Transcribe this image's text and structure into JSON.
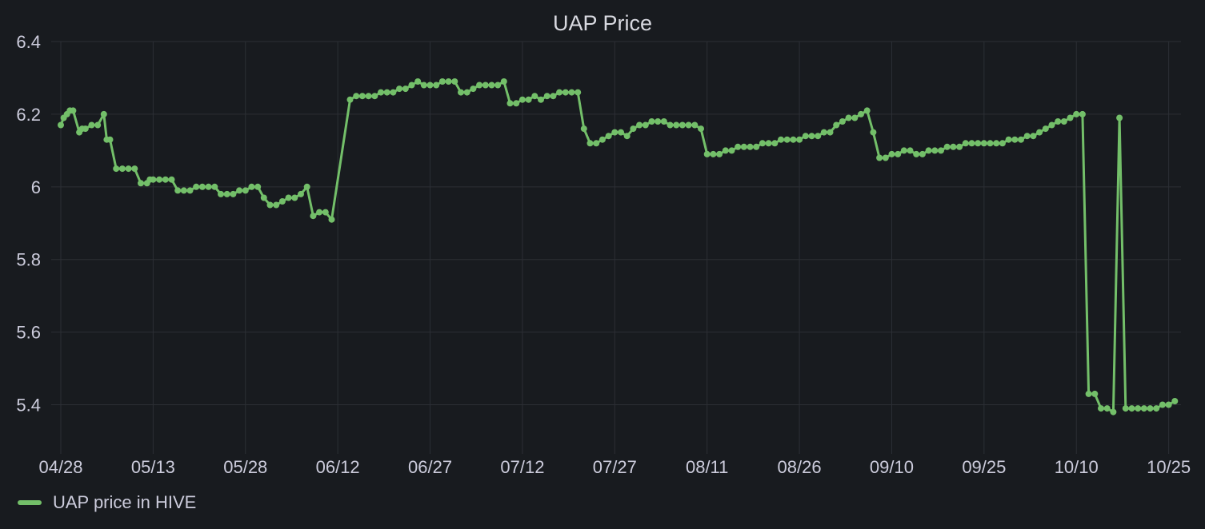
{
  "panel": {
    "title": "UAP Price"
  },
  "legend": {
    "label": "UAP price in HIVE"
  },
  "colors": {
    "background": "#181b1f",
    "grid": "#2c2f35",
    "series": "#73bf69",
    "text": "#ccccdc"
  },
  "chart_data": {
    "type": "line",
    "title": "UAP Price",
    "xlabel": "",
    "ylabel": "",
    "ylim": [
      5.3,
      6.4
    ],
    "xlim": [
      "2024-04-28",
      "2024-10-27"
    ],
    "y_ticks": [
      {
        "value": 5.4,
        "label": "5.4"
      },
      {
        "value": 5.6,
        "label": "5.6"
      },
      {
        "value": 5.8,
        "label": "5.8"
      },
      {
        "value": 6.0,
        "label": "6"
      },
      {
        "value": 6.2,
        "label": "6.2"
      },
      {
        "value": 6.4,
        "label": "6.4"
      }
    ],
    "x_ticks": [
      {
        "value": "2024-04-28",
        "label": "04/28"
      },
      {
        "value": "2024-05-13",
        "label": "05/13"
      },
      {
        "value": "2024-05-28",
        "label": "05/28"
      },
      {
        "value": "2024-06-12",
        "label": "06/12"
      },
      {
        "value": "2024-06-27",
        "label": "06/27"
      },
      {
        "value": "2024-07-12",
        "label": "07/12"
      },
      {
        "value": "2024-07-27",
        "label": "07/27"
      },
      {
        "value": "2024-08-11",
        "label": "08/11"
      },
      {
        "value": "2024-08-26",
        "label": "08/26"
      },
      {
        "value": "2024-09-10",
        "label": "09/10"
      },
      {
        "value": "2024-09-25",
        "label": "09/25"
      },
      {
        "value": "2024-10-10",
        "label": "10/10"
      },
      {
        "value": "2024-10-25",
        "label": "10/25"
      }
    ],
    "grid": true,
    "legend_position": "bottom-left",
    "series": [
      {
        "name": "UAP price in HIVE",
        "color": "#73bf69",
        "points": [
          [
            "2024-04-28",
            6.17
          ],
          [
            "2024-04-28",
            6.19
          ],
          [
            "2024-04-29",
            6.2
          ],
          [
            "2024-04-29",
            6.21
          ],
          [
            "2024-04-30",
            6.21
          ],
          [
            "2024-05-01",
            6.15
          ],
          [
            "2024-05-01",
            6.16
          ],
          [
            "2024-05-02",
            6.16
          ],
          [
            "2024-05-03",
            6.17
          ],
          [
            "2024-05-04",
            6.17
          ],
          [
            "2024-05-05",
            6.2
          ],
          [
            "2024-05-05",
            6.13
          ],
          [
            "2024-05-06",
            6.13
          ],
          [
            "2024-05-07",
            6.05
          ],
          [
            "2024-05-08",
            6.05
          ],
          [
            "2024-05-09",
            6.05
          ],
          [
            "2024-05-10",
            6.05
          ],
          [
            "2024-05-11",
            6.01
          ],
          [
            "2024-05-12",
            6.01
          ],
          [
            "2024-05-12",
            6.02
          ],
          [
            "2024-05-13",
            6.02
          ],
          [
            "2024-05-14",
            6.02
          ],
          [
            "2024-05-15",
            6.02
          ],
          [
            "2024-05-16",
            6.02
          ],
          [
            "2024-05-17",
            5.99
          ],
          [
            "2024-05-18",
            5.99
          ],
          [
            "2024-05-19",
            5.99
          ],
          [
            "2024-05-20",
            6.0
          ],
          [
            "2024-05-21",
            6.0
          ],
          [
            "2024-05-22",
            6.0
          ],
          [
            "2024-05-23",
            6.0
          ],
          [
            "2024-05-24",
            5.98
          ],
          [
            "2024-05-25",
            5.98
          ],
          [
            "2024-05-26",
            5.98
          ],
          [
            "2024-05-27",
            5.99
          ],
          [
            "2024-05-28",
            5.99
          ],
          [
            "2024-05-29",
            6.0
          ],
          [
            "2024-05-30",
            6.0
          ],
          [
            "2024-05-31",
            5.97
          ],
          [
            "2024-06-01",
            5.95
          ],
          [
            "2024-06-02",
            5.95
          ],
          [
            "2024-06-03",
            5.96
          ],
          [
            "2024-06-04",
            5.97
          ],
          [
            "2024-06-05",
            5.97
          ],
          [
            "2024-06-06",
            5.98
          ],
          [
            "2024-06-07",
            6.0
          ],
          [
            "2024-06-08",
            5.92
          ],
          [
            "2024-06-09",
            5.93
          ],
          [
            "2024-06-10",
            5.93
          ],
          [
            "2024-06-11",
            5.91
          ],
          [
            "2024-06-14",
            6.24
          ],
          [
            "2024-06-15",
            6.25
          ],
          [
            "2024-06-16",
            6.25
          ],
          [
            "2024-06-17",
            6.25
          ],
          [
            "2024-06-18",
            6.25
          ],
          [
            "2024-06-19",
            6.26
          ],
          [
            "2024-06-20",
            6.26
          ],
          [
            "2024-06-21",
            6.26
          ],
          [
            "2024-06-22",
            6.27
          ],
          [
            "2024-06-23",
            6.27
          ],
          [
            "2024-06-24",
            6.28
          ],
          [
            "2024-06-25",
            6.29
          ],
          [
            "2024-06-26",
            6.28
          ],
          [
            "2024-06-27",
            6.28
          ],
          [
            "2024-06-28",
            6.28
          ],
          [
            "2024-06-29",
            6.29
          ],
          [
            "2024-06-30",
            6.29
          ],
          [
            "2024-07-01",
            6.29
          ],
          [
            "2024-07-02",
            6.26
          ],
          [
            "2024-07-03",
            6.26
          ],
          [
            "2024-07-04",
            6.27
          ],
          [
            "2024-07-05",
            6.28
          ],
          [
            "2024-07-06",
            6.28
          ],
          [
            "2024-07-07",
            6.28
          ],
          [
            "2024-07-08",
            6.28
          ],
          [
            "2024-07-09",
            6.29
          ],
          [
            "2024-07-10",
            6.23
          ],
          [
            "2024-07-11",
            6.23
          ],
          [
            "2024-07-12",
            6.24
          ],
          [
            "2024-07-13",
            6.24
          ],
          [
            "2024-07-14",
            6.25
          ],
          [
            "2024-07-15",
            6.24
          ],
          [
            "2024-07-16",
            6.25
          ],
          [
            "2024-07-17",
            6.25
          ],
          [
            "2024-07-18",
            6.26
          ],
          [
            "2024-07-19",
            6.26
          ],
          [
            "2024-07-20",
            6.26
          ],
          [
            "2024-07-21",
            6.26
          ],
          [
            "2024-07-22",
            6.16
          ],
          [
            "2024-07-23",
            6.12
          ],
          [
            "2024-07-24",
            6.12
          ],
          [
            "2024-07-25",
            6.13
          ],
          [
            "2024-07-26",
            6.14
          ],
          [
            "2024-07-27",
            6.15
          ],
          [
            "2024-07-28",
            6.15
          ],
          [
            "2024-07-29",
            6.14
          ],
          [
            "2024-07-30",
            6.16
          ],
          [
            "2024-07-31",
            6.17
          ],
          [
            "2024-08-01",
            6.17
          ],
          [
            "2024-08-02",
            6.18
          ],
          [
            "2024-08-03",
            6.18
          ],
          [
            "2024-08-04",
            6.18
          ],
          [
            "2024-08-05",
            6.17
          ],
          [
            "2024-08-06",
            6.17
          ],
          [
            "2024-08-07",
            6.17
          ],
          [
            "2024-08-08",
            6.17
          ],
          [
            "2024-08-09",
            6.17
          ],
          [
            "2024-08-10",
            6.16
          ],
          [
            "2024-08-11",
            6.09
          ],
          [
            "2024-08-12",
            6.09
          ],
          [
            "2024-08-13",
            6.09
          ],
          [
            "2024-08-14",
            6.1
          ],
          [
            "2024-08-15",
            6.1
          ],
          [
            "2024-08-16",
            6.11
          ],
          [
            "2024-08-17",
            6.11
          ],
          [
            "2024-08-18",
            6.11
          ],
          [
            "2024-08-19",
            6.11
          ],
          [
            "2024-08-20",
            6.12
          ],
          [
            "2024-08-21",
            6.12
          ],
          [
            "2024-08-22",
            6.12
          ],
          [
            "2024-08-23",
            6.13
          ],
          [
            "2024-08-24",
            6.13
          ],
          [
            "2024-08-25",
            6.13
          ],
          [
            "2024-08-26",
            6.13
          ],
          [
            "2024-08-27",
            6.14
          ],
          [
            "2024-08-28",
            6.14
          ],
          [
            "2024-08-29",
            6.14
          ],
          [
            "2024-08-30",
            6.15
          ],
          [
            "2024-08-31",
            6.15
          ],
          [
            "2024-09-01",
            6.17
          ],
          [
            "2024-09-02",
            6.18
          ],
          [
            "2024-09-03",
            6.19
          ],
          [
            "2024-09-04",
            6.19
          ],
          [
            "2024-09-05",
            6.2
          ],
          [
            "2024-09-06",
            6.21
          ],
          [
            "2024-09-07",
            6.15
          ],
          [
            "2024-09-08",
            6.08
          ],
          [
            "2024-09-09",
            6.08
          ],
          [
            "2024-09-10",
            6.09
          ],
          [
            "2024-09-11",
            6.09
          ],
          [
            "2024-09-12",
            6.1
          ],
          [
            "2024-09-13",
            6.1
          ],
          [
            "2024-09-14",
            6.09
          ],
          [
            "2024-09-15",
            6.09
          ],
          [
            "2024-09-16",
            6.1
          ],
          [
            "2024-09-17",
            6.1
          ],
          [
            "2024-09-18",
            6.1
          ],
          [
            "2024-09-19",
            6.11
          ],
          [
            "2024-09-20",
            6.11
          ],
          [
            "2024-09-21",
            6.11
          ],
          [
            "2024-09-22",
            6.12
          ],
          [
            "2024-09-23",
            6.12
          ],
          [
            "2024-09-24",
            6.12
          ],
          [
            "2024-09-25",
            6.12
          ],
          [
            "2024-09-26",
            6.12
          ],
          [
            "2024-09-27",
            6.12
          ],
          [
            "2024-09-28",
            6.12
          ],
          [
            "2024-09-29",
            6.13
          ],
          [
            "2024-09-30",
            6.13
          ],
          [
            "2024-10-01",
            6.13
          ],
          [
            "2024-10-02",
            6.14
          ],
          [
            "2024-10-03",
            6.14
          ],
          [
            "2024-10-04",
            6.15
          ],
          [
            "2024-10-05",
            6.16
          ],
          [
            "2024-10-06",
            6.17
          ],
          [
            "2024-10-07",
            6.18
          ],
          [
            "2024-10-08",
            6.18
          ],
          [
            "2024-10-09",
            6.19
          ],
          [
            "2024-10-10",
            6.2
          ],
          [
            "2024-10-11",
            6.2
          ],
          [
            "2024-10-12",
            5.43
          ],
          [
            "2024-10-13",
            5.43
          ],
          [
            "2024-10-14",
            5.39
          ],
          [
            "2024-10-15",
            5.39
          ],
          [
            "2024-10-16",
            5.38
          ],
          [
            "2024-10-17",
            6.19
          ],
          [
            "2024-10-18",
            5.39
          ],
          [
            "2024-10-19",
            5.39
          ],
          [
            "2024-10-20",
            5.39
          ],
          [
            "2024-10-21",
            5.39
          ],
          [
            "2024-10-22",
            5.39
          ],
          [
            "2024-10-23",
            5.39
          ],
          [
            "2024-10-24",
            5.4
          ],
          [
            "2024-10-25",
            5.4
          ],
          [
            "2024-10-26",
            5.41
          ]
        ]
      }
    ]
  }
}
